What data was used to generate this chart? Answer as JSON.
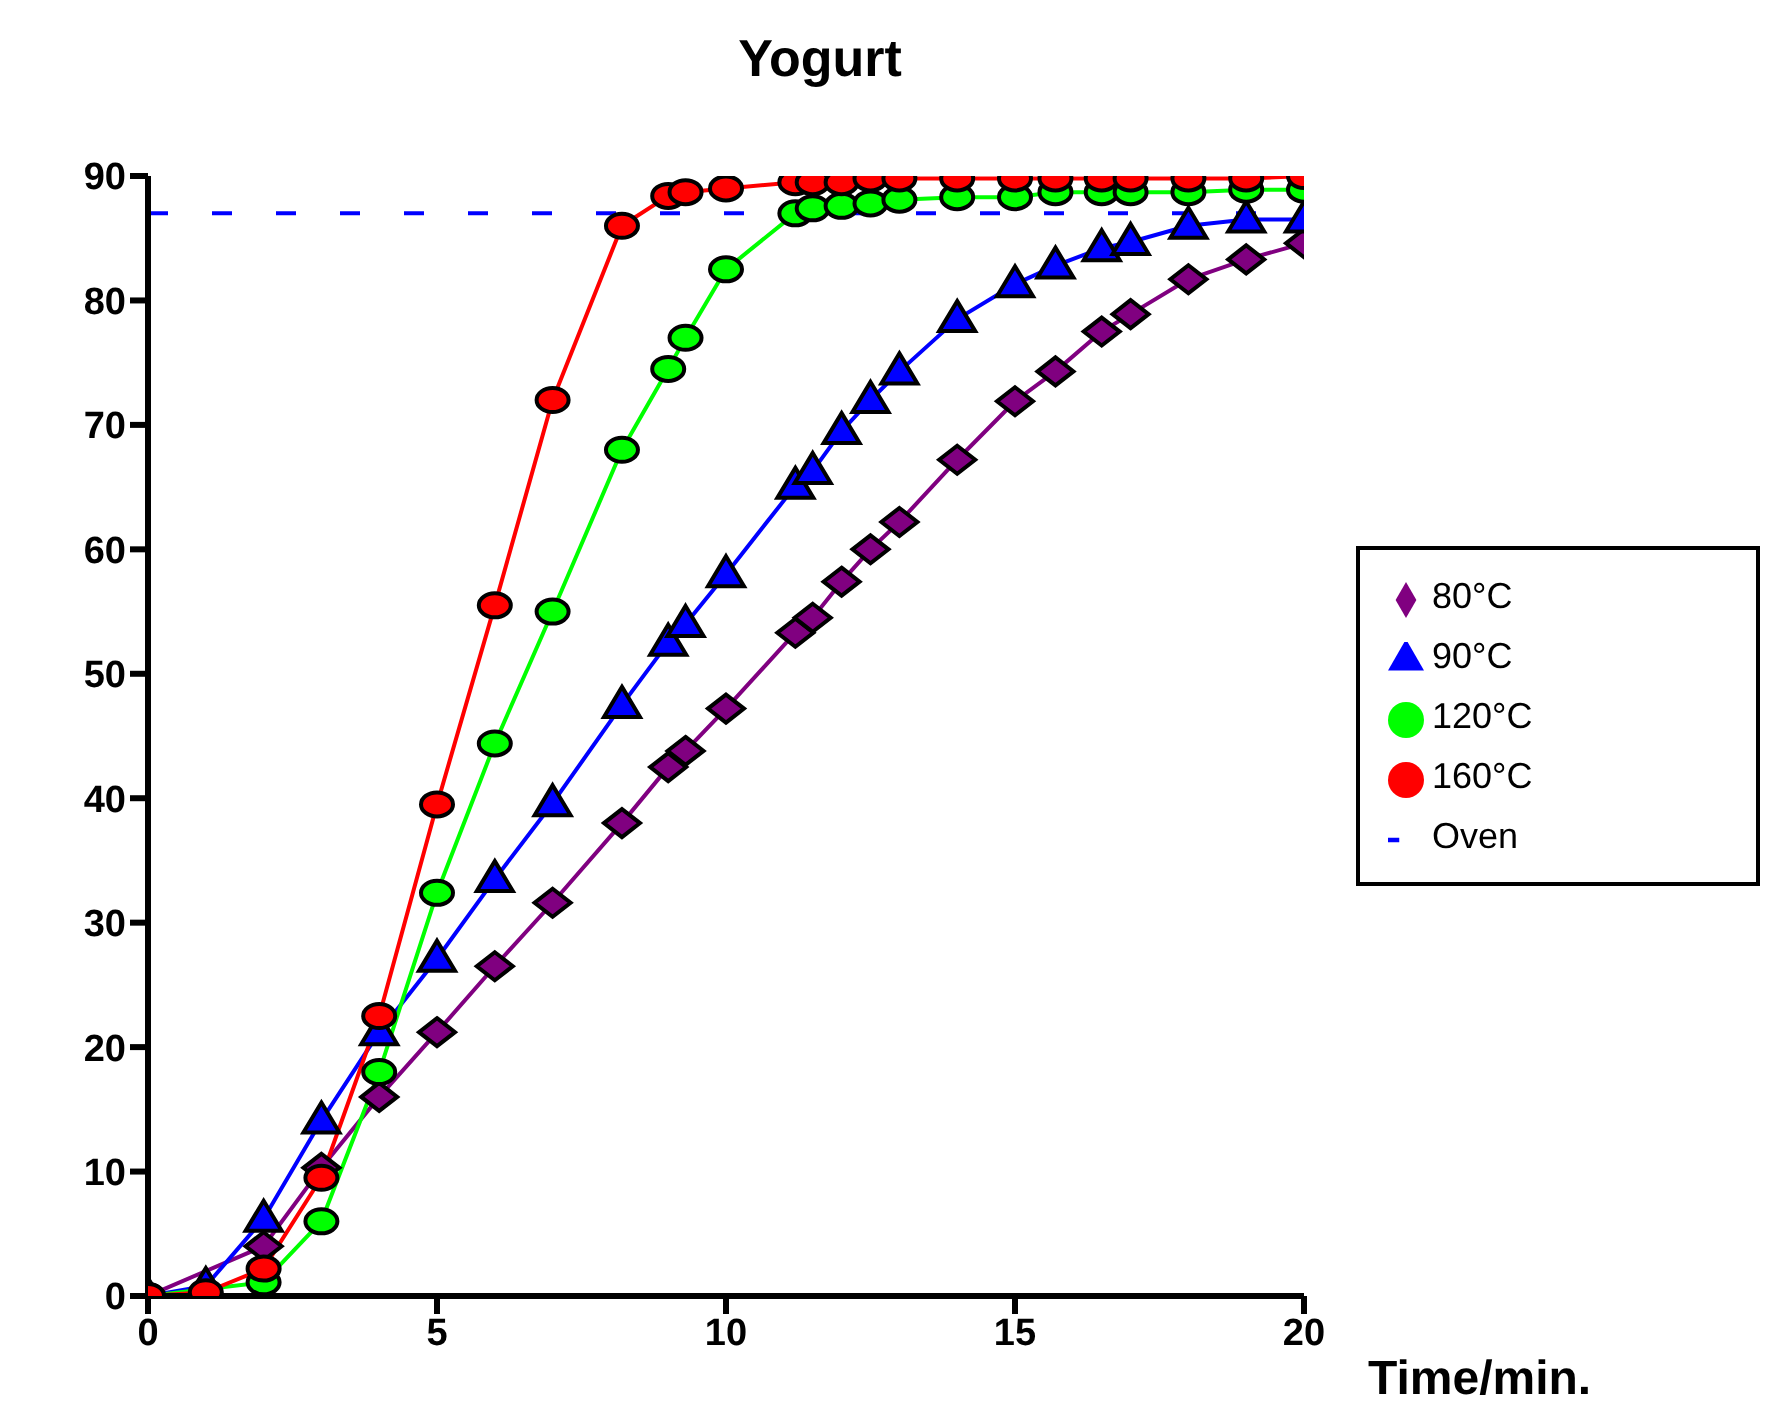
{
  "chart_data": {
    "type": "line",
    "title": "Yogurt",
    "xlabel": "Time/min.",
    "x": [
      0,
      1,
      2,
      3,
      4,
      5,
      6,
      7,
      8.2,
      9,
      9.3,
      10,
      11.2,
      11.5,
      12,
      12.5,
      13,
      14,
      15,
      15.7,
      16.5,
      17,
      18,
      19,
      20
    ],
    "series": [
      {
        "name": "80°C",
        "color": "#800080",
        "marker": "diamond",
        "values": [
          0,
          null,
          4,
          10.3,
          16,
          21.2,
          26.5,
          31.6,
          38,
          42.5,
          43.8,
          47.2,
          53.3,
          54.5,
          57.4,
          60,
          62.2,
          67.2,
          71.9,
          74.3,
          77.5,
          78.9,
          81.7,
          83.3,
          84.6
        ]
      },
      {
        "name": "90°C",
        "color": "#0000ff",
        "marker": "triangle",
        "values": [
          0,
          0.8,
          6.2,
          14.1,
          21.2,
          27.1,
          33.5,
          39.6,
          47.5,
          52.5,
          54,
          58,
          65.1,
          66.3,
          69.5,
          72,
          74.3,
          78.5,
          81.3,
          82.8,
          84.2,
          84.7,
          86,
          86.5,
          86.5
        ]
      },
      {
        "name": "120°C",
        "color": "#00ff00",
        "marker": "circle",
        "values": [
          0,
          null,
          1.1,
          6,
          18,
          32.4,
          44.4,
          55,
          68,
          74.5,
          77,
          82.5,
          87,
          87.4,
          87.6,
          87.8,
          88.1,
          88.3,
          88.3,
          88.7,
          88.7,
          88.7,
          88.7,
          88.9,
          88.9
        ]
      },
      {
        "name": "160°C",
        "color": "#ff0000",
        "marker": "circle",
        "values": [
          0,
          0.3,
          2.2,
          9.5,
          22.5,
          39.5,
          55.5,
          72,
          86,
          88.4,
          88.7,
          89,
          89.5,
          89.5,
          89.5,
          89.8,
          89.8,
          89.8,
          89.8,
          89.8,
          89.8,
          89.8,
          89.8,
          89.8,
          90
        ]
      },
      {
        "name": "Oven",
        "color": "#0000ff",
        "marker": "none",
        "line_style": "dashed",
        "x": [
          0,
          20
        ],
        "values": [
          87,
          87
        ]
      }
    ],
    "xlim": [
      0,
      20
    ],
    "xticks": [
      0,
      5,
      10,
      15,
      20
    ],
    "ylim": [
      0,
      90
    ],
    "yticks": [
      0,
      10,
      20,
      30,
      40,
      50,
      60,
      70,
      80,
      90
    ],
    "legend": "right"
  }
}
